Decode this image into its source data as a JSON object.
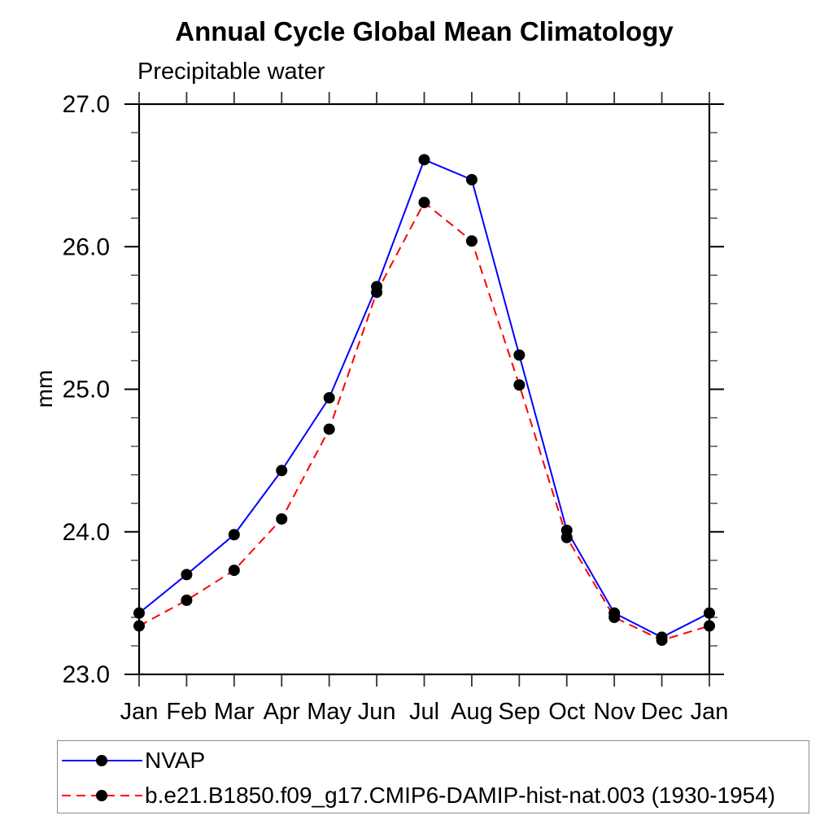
{
  "title": "Annual Cycle Global Mean Climatology",
  "subtitle": "Precipitable water",
  "y_axis": {
    "label": "mm",
    "major_tick_labels": [
      "27.0",
      "26.0",
      "25.0",
      "24.0",
      "23.0"
    ]
  },
  "legend": {
    "items": [
      {
        "label": "NVAP",
        "color": "#0000ff",
        "style": "solid",
        "marker_color": "#000000"
      },
      {
        "label": "b.e21.B1850.f09_g17.CMIP6-DAMIP-hist-nat.003 (1930-1954)",
        "color": "#ff0000",
        "style": "dashed",
        "marker_color": "#000000"
      }
    ]
  },
  "chart_data": {
    "type": "line",
    "title": "Annual Cycle Global Mean Climatology",
    "subtitle": "Precipitable water",
    "ylabel": "mm",
    "xlabel": "",
    "categories": [
      "Jan",
      "Feb",
      "Mar",
      "Apr",
      "May",
      "Jun",
      "Jul",
      "Aug",
      "Sep",
      "Oct",
      "Nov",
      "Dec",
      "Jan"
    ],
    "ylim": [
      23.0,
      27.0
    ],
    "y_major_step": 1.0,
    "y_minor_step": 0.2,
    "grid": false,
    "legend_position": "bottom-left",
    "series": [
      {
        "name": "NVAP",
        "color": "#0000ff",
        "line_style": "solid",
        "marker": "filled-circle",
        "values": [
          23.43,
          23.7,
          23.98,
          24.43,
          24.94,
          25.72,
          26.61,
          26.47,
          25.24,
          24.01,
          23.43,
          23.26,
          23.43
        ]
      },
      {
        "name": "b.e21.B1850.f09_g17.CMIP6-DAMIP-hist-nat.003 (1930-1954)",
        "color": "#ff0000",
        "line_style": "dashed",
        "marker": "filled-circle",
        "values": [
          23.34,
          23.52,
          23.73,
          24.09,
          24.72,
          25.68,
          26.31,
          26.04,
          25.03,
          23.96,
          23.4,
          23.24,
          23.34
        ]
      }
    ]
  }
}
